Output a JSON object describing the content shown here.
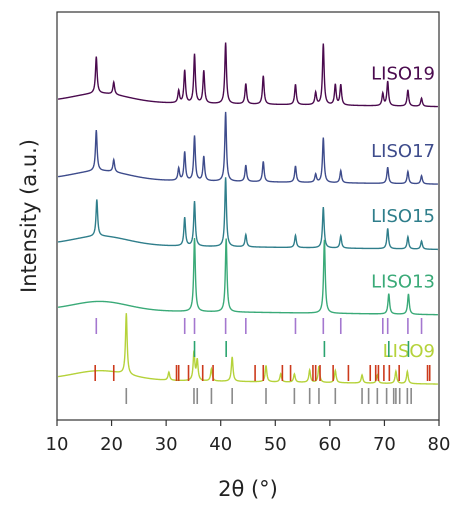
{
  "chart_data": {
    "type": "line",
    "xlabel": "2θ (°)",
    "ylabel": "Intensity (a.u.)",
    "xlim": [
      10,
      80
    ],
    "x_ticks": [
      "10",
      "20",
      "30",
      "40",
      "50",
      "60",
      "70",
      "80"
    ],
    "grid": false,
    "series": [
      {
        "name": "LISO19",
        "color": "#4a0a4e",
        "baseline": 0.78,
        "peaks": [
          [
            17.2,
            0.09
          ],
          [
            20.4,
            0.03
          ],
          [
            32.3,
            0.03
          ],
          [
            33.4,
            0.08
          ],
          [
            35.2,
            0.12
          ],
          [
            36.9,
            0.08
          ],
          [
            40.9,
            0.15
          ],
          [
            44.6,
            0.05
          ],
          [
            47.8,
            0.07
          ],
          [
            53.7,
            0.05
          ],
          [
            57.4,
            0.03
          ],
          [
            58.8,
            0.15
          ],
          [
            61.0,
            0.05
          ],
          [
            62.0,
            0.05
          ],
          [
            69.7,
            0.03
          ],
          [
            70.6,
            0.06
          ],
          [
            74.3,
            0.04
          ],
          [
            76.8,
            0.02
          ]
        ]
      },
      {
        "name": "LISO17",
        "color": "#3e4c8c",
        "baseline": 0.59,
        "peaks": [
          [
            17.2,
            0.1
          ],
          [
            20.4,
            0.03
          ],
          [
            32.3,
            0.03
          ],
          [
            33.4,
            0.07
          ],
          [
            35.2,
            0.11
          ],
          [
            36.9,
            0.06
          ],
          [
            40.9,
            0.17
          ],
          [
            44.6,
            0.04
          ],
          [
            47.8,
            0.05
          ],
          [
            53.7,
            0.04
          ],
          [
            57.4,
            0.02
          ],
          [
            58.8,
            0.11
          ],
          [
            62.0,
            0.03
          ],
          [
            70.6,
            0.04
          ],
          [
            74.3,
            0.03
          ],
          [
            76.8,
            0.02
          ]
        ]
      },
      {
        "name": "LISO15",
        "color": "#2f7e8b",
        "baseline": 0.43,
        "peaks": [
          [
            17.3,
            0.09
          ],
          [
            33.4,
            0.07
          ],
          [
            35.2,
            0.11
          ],
          [
            40.9,
            0.17
          ],
          [
            44.6,
            0.03
          ],
          [
            53.7,
            0.03
          ],
          [
            58.8,
            0.1
          ],
          [
            62.0,
            0.03
          ],
          [
            70.6,
            0.05
          ],
          [
            74.3,
            0.03
          ],
          [
            76.8,
            0.02
          ]
        ]
      },
      {
        "name": "LISO13",
        "color": "#3aaa78",
        "baseline": 0.27,
        "peaks": [
          [
            35.2,
            0.18
          ],
          [
            41.0,
            0.18
          ],
          [
            59.0,
            0.18
          ],
          [
            70.8,
            0.05
          ],
          [
            74.4,
            0.05
          ]
        ]
      },
      {
        "name": "LISO9",
        "color": "#b5d23a",
        "baseline": 0.1,
        "peaks": [
          [
            22.7,
            0.15
          ],
          [
            30.5,
            0.02
          ],
          [
            35.1,
            0.07
          ],
          [
            35.7,
            0.05
          ],
          [
            38.3,
            0.03
          ],
          [
            42.1,
            0.06
          ],
          [
            48.3,
            0.04
          ],
          [
            51.0,
            0.02
          ],
          [
            53.5,
            0.02
          ],
          [
            56.3,
            0.03
          ],
          [
            58.0,
            0.04
          ],
          [
            61.0,
            0.03
          ],
          [
            65.9,
            0.02
          ],
          [
            68.7,
            0.02
          ],
          [
            72.1,
            0.03
          ],
          [
            74.2,
            0.03
          ]
        ]
      }
    ],
    "reference_ticks": [
      {
        "color": "#a477cf",
        "positions": [
          17.2,
          33.4,
          35.2,
          40.9,
          44.6,
          53.7,
          58.8,
          62.0,
          69.7,
          70.6,
          74.3,
          76.8
        ]
      },
      {
        "color": "#2aa36f",
        "positions": [
          35.2,
          41.0,
          59.0,
          70.8,
          74.4
        ]
      },
      {
        "color": "#cc3a1c",
        "positions": [
          17.0,
          20.4,
          31.9,
          32.3,
          34.1,
          36.7,
          38.6,
          46.3,
          47.8,
          51.3,
          52.8,
          56.9,
          57.4,
          58.2,
          60.6,
          63.4,
          67.4,
          68.4,
          68.9,
          69.9,
          70.9,
          72.7,
          77.9,
          78.3
        ]
      },
      {
        "color": "#8a8a8a",
        "positions": [
          22.7,
          35.1,
          35.7,
          38.3,
          42.1,
          48.3,
          53.5,
          56.3,
          58.0,
          61.0,
          65.9,
          67.1,
          68.7,
          70.4,
          71.7,
          72.1,
          72.8,
          74.2,
          74.9
        ]
      }
    ]
  }
}
